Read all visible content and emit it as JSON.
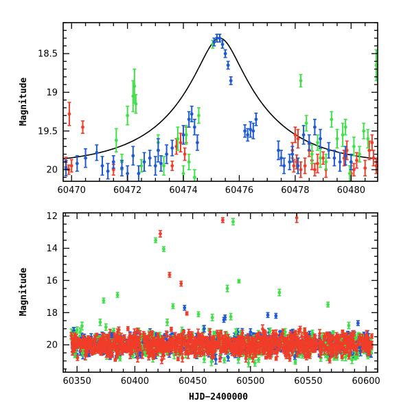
{
  "chart_data": [
    {
      "type": "scatter",
      "panel": "top",
      "xlabel": "",
      "ylabel": "Magnitude",
      "xlim": [
        60469.7,
        60480.95
      ],
      "ylim": [
        20.15,
        18.1
      ],
      "y_inverted": true,
      "x_ticks": [
        60470,
        60472,
        60474,
        60476,
        60478,
        60480
      ],
      "x_tick_labels": [
        "60470",
        "60472",
        "60474",
        "60476",
        "60478",
        "60480"
      ],
      "y_ticks": [
        18.5,
        19,
        19.5,
        20
      ],
      "y_tick_labels": [
        "18.5",
        "19",
        "19.5",
        "20"
      ],
      "model_curve": {
        "color": "#000000",
        "type": "point-lens microlensing fit",
        "t0": 60475.3,
        "peak_mag": 18.3,
        "baseline_mag": 19.95
      },
      "series": [
        {
          "color": "#f03c28",
          "points": [
            [
              60469.8,
              19.9,
              0.06
            ],
            [
              60469.9,
              20.0,
              0.06
            ],
            [
              60469.92,
              19.28,
              0.15
            ],
            [
              60470.0,
              19.95,
              0.08
            ],
            [
              60470.4,
              19.45,
              0.08
            ],
            [
              60471.5,
              20.0,
              0.07
            ],
            [
              60473.6,
              19.95,
              0.06
            ],
            [
              60473.75,
              19.7,
              0.1
            ],
            [
              60473.9,
              19.65,
              0.12
            ],
            [
              60474.05,
              19.8,
              0.08
            ],
            [
              60474.1,
              19.55,
              0.1
            ],
            [
              60477.9,
              19.75,
              0.1
            ],
            [
              60477.95,
              19.95,
              0.08
            ],
            [
              60478.0,
              19.55,
              0.1
            ],
            [
              60478.05,
              19.9,
              0.09
            ],
            [
              60478.1,
              19.6,
              0.12
            ],
            [
              60478.2,
              20.0,
              0.1
            ],
            [
              60478.35,
              19.95,
              0.1
            ],
            [
              60478.5,
              19.75,
              0.08
            ],
            [
              60478.6,
              19.88,
              0.12
            ],
            [
              60478.7,
              20.0,
              0.08
            ],
            [
              60478.8,
              19.92,
              0.12
            ],
            [
              60479.0,
              19.85,
              0.08
            ],
            [
              60479.1,
              20.0,
              0.1
            ],
            [
              60479.75,
              19.85,
              0.1
            ],
            [
              60479.85,
              19.75,
              0.12
            ],
            [
              60480.0,
              20.05,
              0.1
            ],
            [
              60480.1,
              20.0,
              0.08
            ],
            [
              60480.2,
              19.88,
              0.1
            ],
            [
              60480.5,
              19.98,
              0.1
            ],
            [
              60480.65,
              19.75,
              0.12
            ],
            [
              60480.75,
              19.65,
              0.1
            ],
            [
              60480.8,
              19.85,
              0.1
            ],
            [
              60480.9,
              19.95,
              0.1
            ]
          ]
        },
        {
          "color": "#40e048",
          "points": [
            [
              60471.6,
              19.62,
              0.15
            ],
            [
              60471.8,
              19.9,
              0.1
            ],
            [
              60472.0,
              19.3,
              0.12
            ],
            [
              60472.2,
              19.05,
              0.2
            ],
            [
              60472.25,
              18.92,
              0.22
            ],
            [
              60472.3,
              19.15,
              0.12
            ],
            [
              60472.5,
              19.95,
              0.08
            ],
            [
              60473.1,
              19.65,
              0.1
            ],
            [
              60473.3,
              19.95,
              0.12
            ],
            [
              60473.8,
              19.6,
              0.15
            ],
            [
              60474.0,
              20.05,
              0.1
            ],
            [
              60474.1,
              19.55,
              0.12
            ],
            [
              60474.2,
              19.9,
              0.1
            ],
            [
              60474.4,
              20.1,
              0.1
            ],
            [
              60474.55,
              19.3,
              0.1
            ],
            [
              60475.05,
              18.38,
              0.05
            ],
            [
              60478.2,
              18.85,
              0.08
            ],
            [
              60478.4,
              19.4,
              0.1
            ],
            [
              60478.6,
              19.8,
              0.12
            ],
            [
              60478.8,
              19.65,
              0.1
            ],
            [
              60478.9,
              19.85,
              0.12
            ],
            [
              60479.1,
              19.9,
              0.1
            ],
            [
              60479.3,
              19.35,
              0.1
            ],
            [
              60479.5,
              19.6,
              0.12
            ],
            [
              60479.7,
              19.55,
              0.15
            ],
            [
              60479.8,
              19.45,
              0.1
            ],
            [
              60479.95,
              20.05,
              0.1
            ],
            [
              60480.1,
              19.7,
              0.12
            ],
            [
              60480.3,
              19.8,
              0.1
            ],
            [
              60480.45,
              19.5,
              0.1
            ],
            [
              60480.6,
              19.6,
              0.12
            ],
            [
              60480.9,
              18.65,
              0.2
            ]
          ]
        },
        {
          "color": "#1e5ad2",
          "points": [
            [
              60469.8,
              19.98,
              0.1
            ],
            [
              60470.2,
              19.92,
              0.1
            ],
            [
              60470.5,
              19.85,
              0.12
            ],
            [
              60470.9,
              19.78,
              0.1
            ],
            [
              60471.1,
              19.95,
              0.12
            ],
            [
              60471.3,
              20.02,
              0.1
            ],
            [
              60471.5,
              19.9,
              0.08
            ],
            [
              60471.8,
              19.98,
              0.1
            ],
            [
              60472.0,
              20.05,
              0.1
            ],
            [
              60472.2,
              19.82,
              0.12
            ],
            [
              60472.4,
              20.05,
              0.1
            ],
            [
              60472.6,
              19.9,
              0.12
            ],
            [
              60472.8,
              19.85,
              0.1
            ],
            [
              60473.0,
              19.95,
              0.12
            ],
            [
              60473.1,
              19.75,
              0.15
            ],
            [
              60473.2,
              19.92,
              0.1
            ],
            [
              60473.4,
              19.8,
              0.12
            ],
            [
              60473.6,
              19.72,
              0.1
            ],
            [
              60474.0,
              19.55,
              0.12
            ],
            [
              60474.2,
              19.35,
              0.1
            ],
            [
              60474.3,
              19.28,
              0.1
            ],
            [
              60474.4,
              19.45,
              0.1
            ],
            [
              60474.5,
              19.65,
              0.1
            ],
            [
              60475.1,
              18.35,
              0.05
            ],
            [
              60475.2,
              18.3,
              0.05
            ],
            [
              60475.3,
              18.3,
              0.05
            ],
            [
              60475.4,
              18.38,
              0.05
            ],
            [
              60475.5,
              18.5,
              0.05
            ],
            [
              60475.6,
              18.65,
              0.05
            ],
            [
              60475.7,
              18.85,
              0.05
            ],
            [
              60476.2,
              19.5,
              0.08
            ],
            [
              60476.3,
              19.55,
              0.08
            ],
            [
              60476.4,
              19.48,
              0.1
            ],
            [
              60476.5,
              19.5,
              0.1
            ],
            [
              60476.6,
              19.35,
              0.08
            ],
            [
              60477.4,
              19.75,
              0.12
            ],
            [
              60477.5,
              19.85,
              0.1
            ],
            [
              60477.6,
              19.95,
              0.1
            ],
            [
              60477.8,
              19.9,
              0.1
            ],
            [
              60477.9,
              19.8,
              0.1
            ],
            [
              60478.1,
              19.95,
              0.1
            ],
            [
              60478.3,
              19.55,
              0.12
            ],
            [
              60478.5,
              19.65,
              0.1
            ],
            [
              60478.7,
              19.45,
              0.1
            ],
            [
              60478.9,
              19.6,
              0.12
            ],
            [
              60479.2,
              19.75,
              0.1
            ],
            [
              60479.4,
              19.85,
              0.1
            ],
            [
              60479.6,
              19.9,
              0.12
            ],
            [
              60479.8,
              19.82,
              0.12
            ],
            [
              60480.0,
              19.9,
              0.1
            ]
          ]
        }
      ]
    },
    {
      "type": "scatter",
      "panel": "bottom",
      "xlabel": "HJD−2400000",
      "ylabel": "Magnitude",
      "xlim": [
        60338,
        60610
      ],
      "ylim": [
        21.7,
        11.8
      ],
      "y_inverted": true,
      "x_ticks": [
        60350,
        60400,
        60450,
        60500,
        60550,
        60600
      ],
      "x_tick_labels": [
        "60350",
        "60400",
        "60450",
        "60500",
        "60550",
        "60600"
      ],
      "y_ticks": [
        12,
        14,
        16,
        18,
        20
      ],
      "y_tick_labels": [
        "12",
        "14",
        "16",
        "18",
        "20"
      ],
      "baseline": {
        "x_range": [
          60345,
          60605
        ],
        "mag": 20.0,
        "scatter": 0.35
      },
      "series": [
        {
          "color": "#f03c28",
          "points": [
            [
              60422,
              13.1,
              0.2
            ],
            [
              60430,
              15.65,
              0.15
            ],
            [
              60440,
              16.2,
              0.15
            ],
            [
              60445,
              18.05,
              0.1
            ],
            [
              60476,
              12.25,
              0.15
            ],
            [
              60540,
              12.1,
              0.3
            ],
            [
              60543,
              19.0,
              0.15
            ],
            [
              60547,
              19.1,
              0.15
            ],
            [
              60370,
              20.35,
              0.2
            ],
            [
              60465,
              19.2,
              0.2
            ],
            [
              60520,
              19.3,
              0.2
            ]
          ]
        },
        {
          "color": "#40e048",
          "points": [
            [
              60373,
              17.25,
              0.15
            ],
            [
              60385,
              16.9,
              0.15
            ],
            [
              60418,
              13.5,
              0.15
            ],
            [
              60425,
              14.05,
              0.15
            ],
            [
              60428,
              18.6,
              0.2
            ],
            [
              60433,
              17.6,
              0.15
            ],
            [
              60455,
              18.1,
              0.15
            ],
            [
              60467,
              18.3,
              0.2
            ],
            [
              60485,
              12.35,
              0.2
            ],
            [
              60490,
              16.05,
              0.1
            ],
            [
              60483,
              18.25,
              0.2
            ],
            [
              60480,
              16.5,
              0.2
            ],
            [
              60525,
              16.75,
              0.2
            ],
            [
              60530,
              19.2,
              0.2
            ],
            [
              60567,
              17.5,
              0.15
            ],
            [
              60585,
              18.8,
              0.2
            ],
            [
              60370,
              18.6,
              0.2
            ],
            [
              60375,
              18.9,
              0.2
            ],
            [
              60355,
              20.5,
              0.2
            ],
            [
              60460,
              20.9,
              0.2
            ]
          ]
        },
        {
          "color": "#1e5ad2",
          "points": [
            [
              60443,
              17.7,
              0.15
            ],
            [
              60477,
              18.45,
              0.15
            ],
            [
              60478,
              18.3,
              0.15
            ],
            [
              60515,
              18.15,
              0.15
            ],
            [
              60522,
              18.2,
              0.15
            ],
            [
              60593,
              18.65,
              0.15
            ],
            [
              60380,
              19.4,
              0.15
            ],
            [
              60460,
              19.0,
              0.2
            ],
            [
              60500,
              19.2,
              0.2
            ],
            [
              60470,
              20.9,
              0.3
            ]
          ]
        }
      ]
    }
  ]
}
